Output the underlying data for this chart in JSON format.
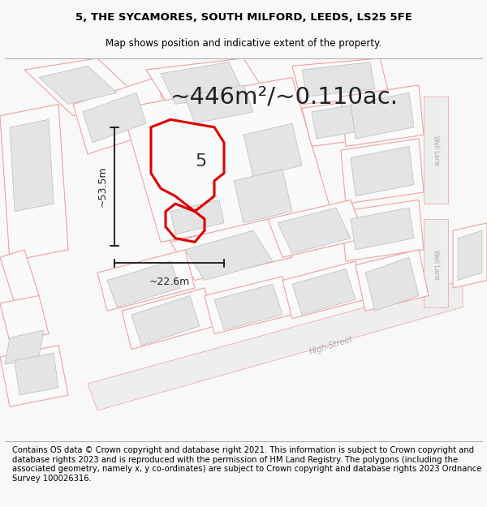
{
  "title_line1": "5, THE SYCAMORES, SOUTH MILFORD, LEEDS, LS25 5FE",
  "title_line2": "Map shows position and indicative extent of the property.",
  "area_text": "~446m²/~0.110ac.",
  "property_number": "5",
  "dim_width": "~22.6m",
  "dim_height": "~53.5m",
  "footer_text": "Contains OS data © Crown copyright and database right 2021. This information is subject to Crown copyright and database rights 2023 and is reproduced with the permission of HM Land Registry. The polygons (including the associated geometry, namely x, y co-ordinates) are subject to Crown copyright and database rights 2023 Ordnance Survey 100026316.",
  "bg_color": "#f8f8f8",
  "map_bg": "#ffffff",
  "building_fill": "#e4e4e4",
  "building_edge": "#bbbbbb",
  "property_edge": "#dd0000",
  "pink_line": "#f0a0a0",
  "pink_fill": "#fdf0f0",
  "title_fontsize": 9.5,
  "subtitle_fontsize": 8.5,
  "area_fontsize": 21,
  "footer_fontsize": 7.2,
  "well_lane_label1": "Well Lane",
  "well_lane_label2": "Well Lane",
  "high_street_label": "High-Street"
}
